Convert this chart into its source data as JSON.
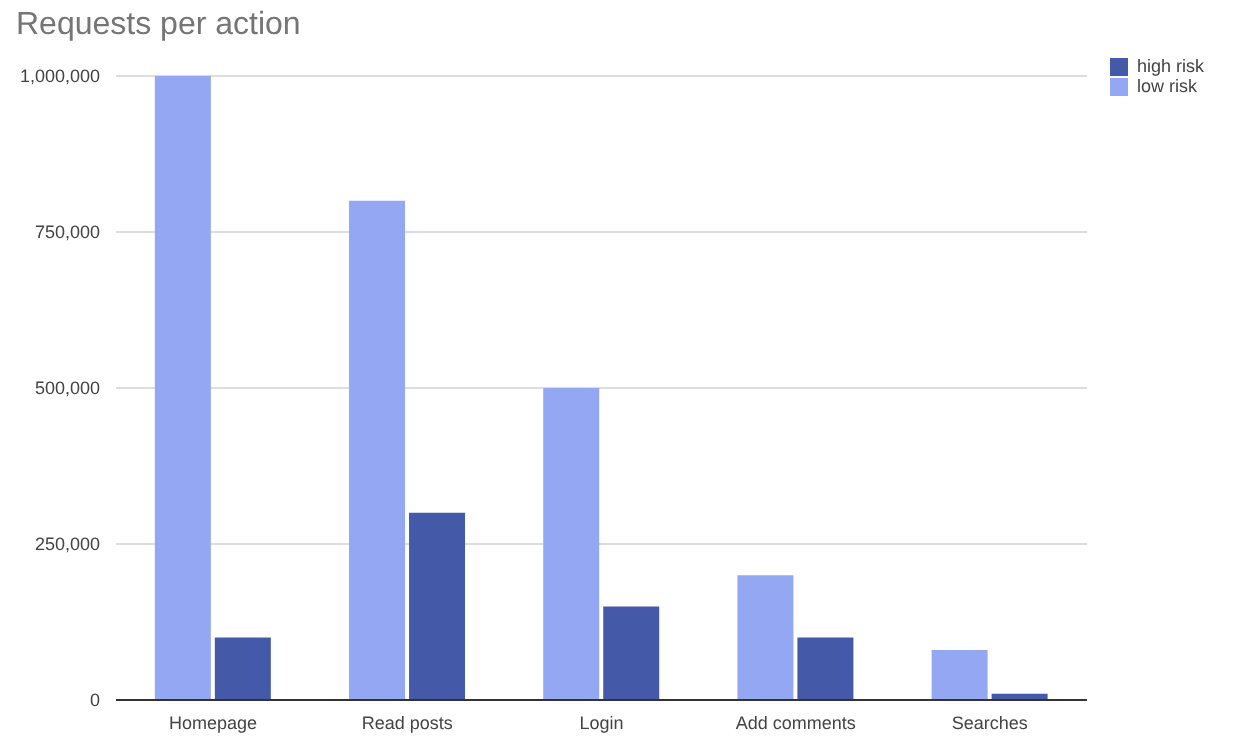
{
  "chart_data": {
    "type": "bar",
    "title": "Requests per action",
    "categories": [
      "Homepage",
      "Read posts",
      "Login",
      "Add comments",
      "Searches"
    ],
    "series": [
      {
        "name": "low risk",
        "color": "#93a7f3",
        "values": [
          1000000,
          800000,
          500000,
          200000,
          80000
        ]
      },
      {
        "name": "high risk",
        "color": "#4459a8",
        "values": [
          100000,
          300000,
          150000,
          100000,
          10000
        ]
      }
    ],
    "ylim": [
      0,
      1000000
    ],
    "yticks": [
      {
        "value": 0,
        "label": "0"
      },
      {
        "value": 250000,
        "label": "250,000"
      },
      {
        "value": 500000,
        "label": "500,000"
      },
      {
        "value": 750000,
        "label": "750,000"
      },
      {
        "value": 1000000,
        "label": "1,000,000"
      }
    ],
    "grid": "y",
    "legend": "top right"
  }
}
